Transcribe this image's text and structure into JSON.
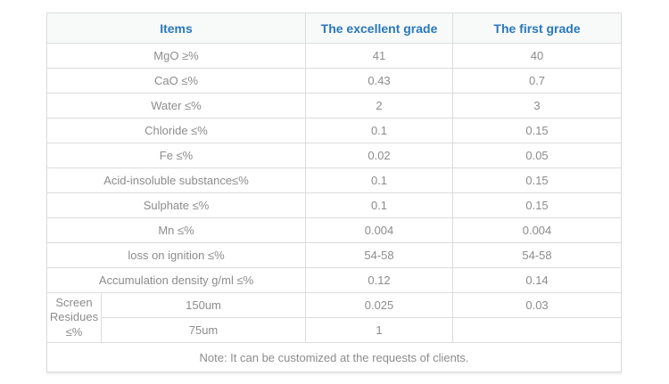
{
  "table": {
    "headers": {
      "items": "Items",
      "excellent": "The excellent grade",
      "first": "The first grade"
    },
    "rows": [
      {
        "item": "MgO ≥%",
        "excellent": "41",
        "first": "40"
      },
      {
        "item": "CaO ≤%",
        "excellent": "0.43",
        "first": "0.7"
      },
      {
        "item": "Water ≤%",
        "excellent": "2",
        "first": "3"
      },
      {
        "item": "Chloride ≤%",
        "excellent": "0.1",
        "first": "0.15"
      },
      {
        "item": "Fe ≤%",
        "excellent": "0.02",
        "first": "0.05"
      },
      {
        "item": "Acid-insoluble substance≤%",
        "excellent": "0.1",
        "first": "0.15"
      },
      {
        "item": "Sulphate ≤%",
        "excellent": "0.1",
        "first": "0.15"
      },
      {
        "item": "Mn ≤%",
        "excellent": "0.004",
        "first": "0.004"
      },
      {
        "item": "loss on ignition ≤%",
        "excellent": "54-58",
        "first": "54-58"
      },
      {
        "item": "Accumulation density g/ml ≤%",
        "excellent": "0.12",
        "first": "0.14"
      }
    ],
    "screen_group": {
      "label": "Screen Residues ≤%",
      "rows": [
        {
          "size": "150um",
          "excellent": "0.025",
          "first": "0.03"
        },
        {
          "size": "75um",
          "excellent": "1",
          "first": ""
        }
      ]
    },
    "note": "Note: It can be customized at the requests of clients."
  },
  "colors": {
    "header_text": "#2878be",
    "body_text": "#8c8c8c",
    "border": "#dcdcdc",
    "header_bg": "#f8f9f9"
  }
}
